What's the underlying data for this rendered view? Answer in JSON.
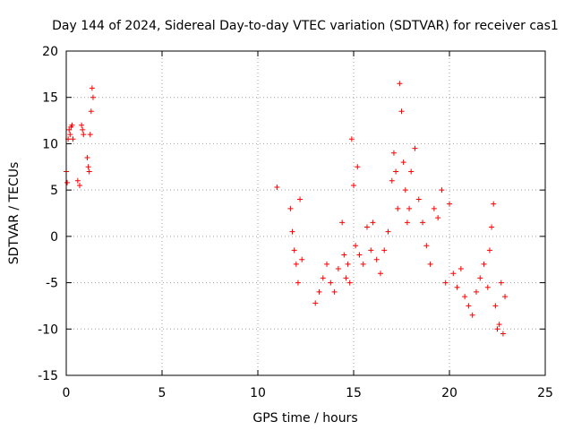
{
  "chart_data": {
    "type": "scatter",
    "title": "Day 144 of 2024, Sidereal Day-to-day VTEC variation (SDTVAR) for receiver cas1",
    "xlabel": "GPS time / hours",
    "ylabel": "SDTVAR / TECUs",
    "xlim": [
      0,
      25
    ],
    "ylim": [
      -15,
      20
    ],
    "x_ticks": [
      0,
      5,
      10,
      15,
      20,
      25
    ],
    "x_tick_labels": [
      "0",
      "5",
      "10",
      "15",
      "20",
      "25"
    ],
    "y_ticks": [
      -15,
      -10,
      -5,
      0,
      5,
      10,
      15,
      20
    ],
    "y_tick_labels": [
      "-15",
      "-10",
      "-5",
      "0",
      "5",
      "10",
      "15",
      "20"
    ],
    "grid": true,
    "marker": "+",
    "series": [
      {
        "name": "SDTVAR",
        "color": "#ff0000",
        "x": [
          0.0,
          0.05,
          0.1,
          0.15,
          0.2,
          0.25,
          0.3,
          0.35,
          0.6,
          0.7,
          0.8,
          0.85,
          0.9,
          1.1,
          1.15,
          1.2,
          1.25,
          1.3,
          1.35,
          1.4,
          11.0,
          11.7,
          11.8,
          11.9,
          12.0,
          12.1,
          12.2,
          12.3,
          13.0,
          13.2,
          13.4,
          13.6,
          13.8,
          14.0,
          14.2,
          14.4,
          14.5,
          14.6,
          14.7,
          14.8,
          14.9,
          15.0,
          15.1,
          15.2,
          15.3,
          15.5,
          15.7,
          15.9,
          16.0,
          16.2,
          16.4,
          16.6,
          16.8,
          17.0,
          17.1,
          17.2,
          17.3,
          17.4,
          17.5,
          17.6,
          17.7,
          17.8,
          17.9,
          18.0,
          18.2,
          18.4,
          18.6,
          18.8,
          19.0,
          19.2,
          19.4,
          19.6,
          19.8,
          20.0,
          20.2,
          20.4,
          20.6,
          20.8,
          21.0,
          21.2,
          21.4,
          21.6,
          21.8,
          22.0,
          22.1,
          22.2,
          22.3,
          22.4,
          22.5,
          22.6,
          22.7,
          22.8,
          22.9
        ],
        "y": [
          7.0,
          5.8,
          10.5,
          11.5,
          11.0,
          11.8,
          12.0,
          10.5,
          6.0,
          5.5,
          12.0,
          11.5,
          11.0,
          8.5,
          7.5,
          7.0,
          11.0,
          13.5,
          16.0,
          15.0,
          5.3,
          3.0,
          0.5,
          -1.5,
          -3.0,
          -5.0,
          4.0,
          -2.5,
          -7.2,
          -6.0,
          -4.5,
          -3.0,
          -5.0,
          -6.0,
          -3.5,
          1.5,
          -2.0,
          -4.5,
          -3.0,
          -5.0,
          10.5,
          5.5,
          -1.0,
          7.5,
          -2.0,
          -3.0,
          1.0,
          -1.5,
          1.5,
          -2.5,
          -4.0,
          -1.5,
          0.5,
          6.0,
          9.0,
          7.0,
          3.0,
          16.5,
          13.5,
          8.0,
          5.0,
          1.5,
          3.0,
          7.0,
          9.5,
          4.0,
          1.5,
          -1.0,
          -3.0,
          3.0,
          2.0,
          5.0,
          -5.0,
          3.5,
          -4.0,
          -5.5,
          -3.5,
          -6.5,
          -7.5,
          -8.5,
          -6.0,
          -4.5,
          -3.0,
          -5.5,
          -1.5,
          1.0,
          3.5,
          -7.5,
          -10.0,
          -9.5,
          -5.0,
          -10.5,
          -6.5
        ]
      }
    ]
  }
}
